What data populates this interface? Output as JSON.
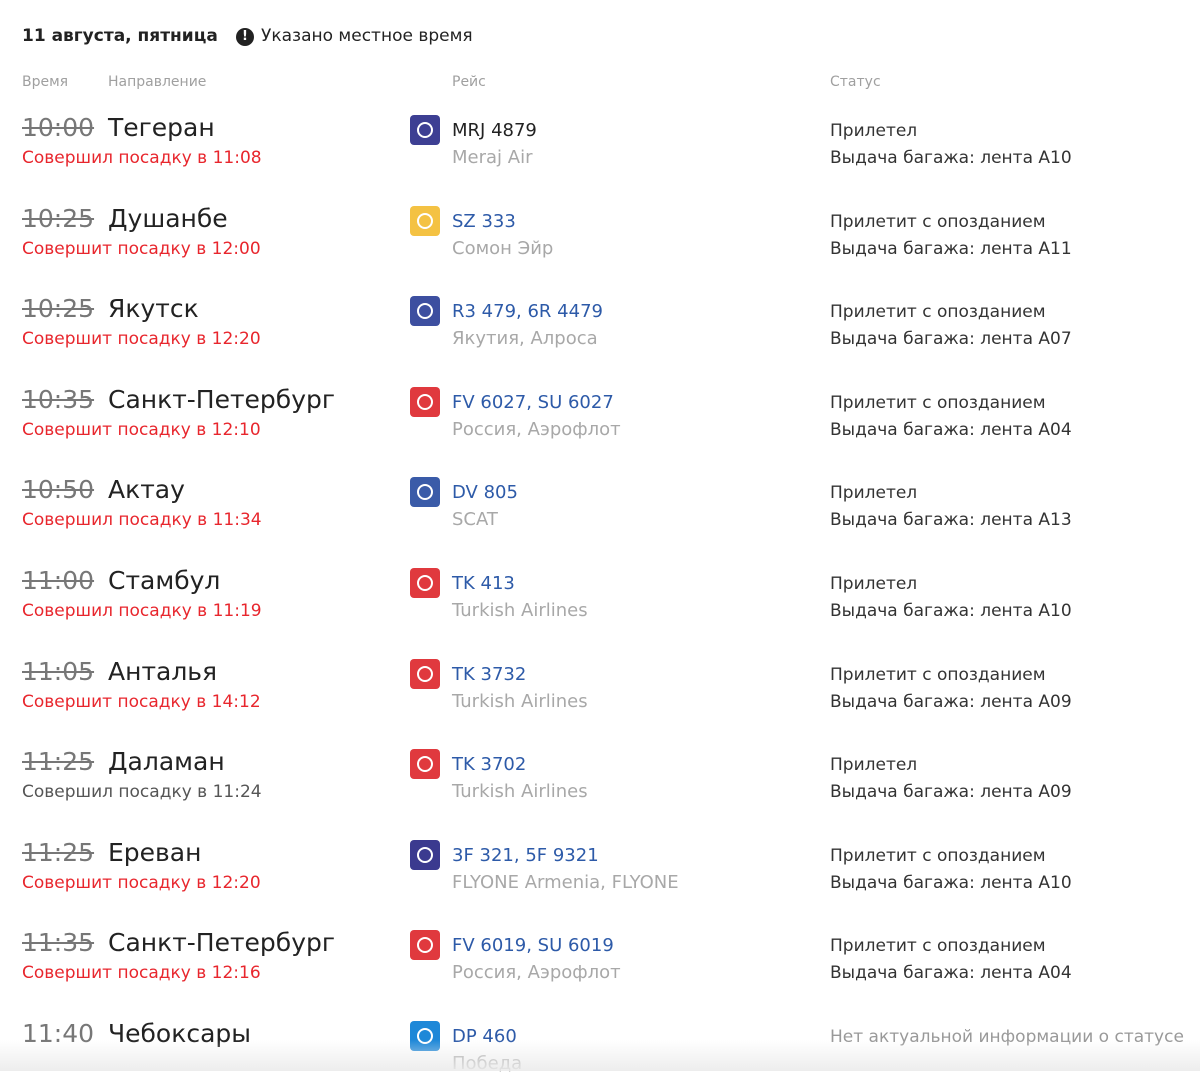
{
  "header": {
    "date": "11 августа, пятница",
    "note": "Указано местное время"
  },
  "columns": {
    "time": "Время",
    "direction": "Направление",
    "flight": "Рейс",
    "status": "Статус"
  },
  "rows": [
    {
      "time": "10:00",
      "struck": true,
      "city": "Тегеран",
      "boarding": "Совершил посадку в 11:08",
      "boarding_late": true,
      "flight": "MRJ 4879",
      "flight_link": false,
      "airline": "Meraj Air",
      "logo_color": "#3d3f93",
      "status": "Прилетел",
      "baggage": "Выдача багажа: лента A10"
    },
    {
      "time": "10:25",
      "struck": true,
      "city": "Душанбе",
      "boarding": "Совершит посадку в 12:00",
      "boarding_late": true,
      "flight": "SZ 333",
      "flight_link": true,
      "airline": "Сомон Эйр",
      "logo_color": "#f4c243",
      "status": "Прилетит с опозданием",
      "baggage": "Выдача багажа: лента A11"
    },
    {
      "time": "10:25",
      "struck": true,
      "city": "Якутск",
      "boarding": "Совершит посадку в 12:20",
      "boarding_late": true,
      "flight": "R3 479, 6R 4479",
      "flight_link": true,
      "airline": "Якутия, Алроса",
      "logo_color": "#3d4fa0",
      "status": "Прилетит с опозданием",
      "baggage": "Выдача багажа: лента A07"
    },
    {
      "time": "10:35",
      "struck": true,
      "city": "Санкт-Петербург",
      "boarding": "Совершит посадку в 12:10",
      "boarding_late": true,
      "flight": "FV 6027, SU 6027",
      "flight_link": true,
      "airline": "Россия, Аэрофлот",
      "logo_color": "#e0393e",
      "status": "Прилетит с опозданием",
      "baggage": "Выдача багажа: лента A04"
    },
    {
      "time": "10:50",
      "struck": true,
      "city": "Актау",
      "boarding": "Совершил посадку в 11:34",
      "boarding_late": true,
      "flight": "DV 805",
      "flight_link": true,
      "airline": "SCAT",
      "logo_color": "#3a5ba8",
      "status": "Прилетел",
      "baggage": "Выдача багажа: лента A13"
    },
    {
      "time": "11:00",
      "struck": true,
      "city": "Стамбул",
      "boarding": "Совершил посадку в 11:19",
      "boarding_late": true,
      "flight": "TK 413",
      "flight_link": true,
      "airline": "Turkish Airlines",
      "logo_color": "#e0393e",
      "status": "Прилетел",
      "baggage": "Выдача багажа: лента A10"
    },
    {
      "time": "11:05",
      "struck": true,
      "city": "Анталья",
      "boarding": "Совершит посадку в 14:12",
      "boarding_late": true,
      "flight": "TK 3732",
      "flight_link": true,
      "airline": "Turkish Airlines",
      "logo_color": "#e0393e",
      "status": "Прилетит с опозданием",
      "baggage": "Выдача багажа: лента A09"
    },
    {
      "time": "11:25",
      "struck": true,
      "city": "Даламан",
      "boarding": "Совершил посадку в 11:24",
      "boarding_late": false,
      "flight": "TK 3702",
      "flight_link": true,
      "airline": "Turkish Airlines",
      "logo_color": "#e0393e",
      "status": "Прилетел",
      "baggage": "Выдача багажа: лента A09"
    },
    {
      "time": "11:25",
      "struck": true,
      "city": "Ереван",
      "boarding": "Совершит посадку в 12:20",
      "boarding_late": true,
      "flight": "3F 321, 5F 9321",
      "flight_link": true,
      "airline": "FLYONE Armenia, FLYONE",
      "logo_color": "#3b3a8f",
      "status": "Прилетит с опозданием",
      "baggage": "Выдача багажа: лента A10"
    },
    {
      "time": "11:35",
      "struck": true,
      "city": "Санкт-Петербург",
      "boarding": "Совершит посадку в 12:16",
      "boarding_late": true,
      "flight": "FV 6019, SU 6019",
      "flight_link": true,
      "airline": "Россия, Аэрофлот",
      "logo_color": "#e0393e",
      "status": "Прилетит с опозданием",
      "baggage": "Выдача багажа: лента A04"
    },
    {
      "time": "11:40",
      "struck": false,
      "city": "Чебоксары",
      "flight": "DP 460",
      "flight_link": true,
      "airline": "Победа",
      "logo_color": "#1e88d8",
      "status": "Нет актуальной информации о статусе",
      "status_unknown": true
    }
  ]
}
